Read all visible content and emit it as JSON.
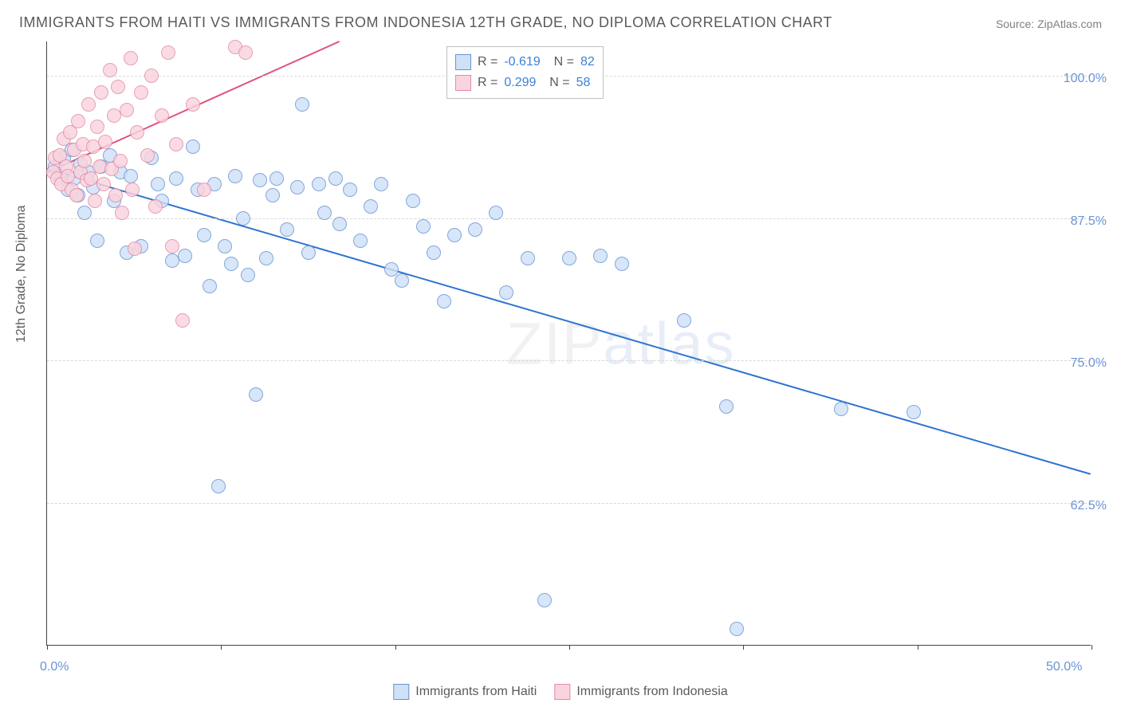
{
  "title": "IMMIGRANTS FROM HAITI VS IMMIGRANTS FROM INDONESIA 12TH GRADE, NO DIPLOMA CORRELATION CHART",
  "source": "Source: ZipAtlas.com",
  "y_axis_label": "12th Grade, No Diploma",
  "watermark": {
    "part1": "ZIP",
    "part2": "atlas"
  },
  "chart": {
    "type": "scatter",
    "xlim": [
      0,
      50
    ],
    "ylim": [
      50,
      103
    ],
    "x_ticks": [
      0,
      8.33,
      16.67,
      25,
      33.33,
      41.67,
      50
    ],
    "x_tick_labels": {
      "0": "0.0%",
      "50": "50.0%"
    },
    "y_grid": [
      62.5,
      75,
      87.5,
      100
    ],
    "y_tick_labels": [
      "62.5%",
      "75.0%",
      "87.5%",
      "100.0%"
    ],
    "background_color": "#ffffff",
    "grid_color": "#d8d8d8",
    "axis_color": "#444444",
    "series": [
      {
        "name": "Immigrants from Haiti",
        "color_fill": "#cfe1f7",
        "color_stroke": "#6a93d4",
        "marker_radius": 9,
        "R": "-0.619",
        "N": "82",
        "trend": {
          "x1": 0,
          "y1": 91.8,
          "x2": 50,
          "y2": 65.0,
          "color": "#2f74d0",
          "width": 2
        },
        "points": [
          [
            0.4,
            92.0
          ],
          [
            0.6,
            91.2
          ],
          [
            0.8,
            92.8
          ],
          [
            1.0,
            90.0
          ],
          [
            1.2,
            93.5
          ],
          [
            1.3,
            91.0
          ],
          [
            1.5,
            89.5
          ],
          [
            1.6,
            92.2
          ],
          [
            1.8,
            88.0
          ],
          [
            2.0,
            91.5
          ],
          [
            2.2,
            90.2
          ],
          [
            2.4,
            85.5
          ],
          [
            2.6,
            92.0
          ],
          [
            3.0,
            93.0
          ],
          [
            3.2,
            89.0
          ],
          [
            3.5,
            91.5
          ],
          [
            3.8,
            84.5
          ],
          [
            4.0,
            91.2
          ],
          [
            4.5,
            85.0
          ],
          [
            5.0,
            92.8
          ],
          [
            5.3,
            90.5
          ],
          [
            5.5,
            89.0
          ],
          [
            6.0,
            83.8
          ],
          [
            6.2,
            91.0
          ],
          [
            6.6,
            84.2
          ],
          [
            7.0,
            93.8
          ],
          [
            7.2,
            90.0
          ],
          [
            7.5,
            86.0
          ],
          [
            7.8,
            81.5
          ],
          [
            8.0,
            90.5
          ],
          [
            8.2,
            64.0
          ],
          [
            8.5,
            85.0
          ],
          [
            8.8,
            83.5
          ],
          [
            9.0,
            91.2
          ],
          [
            9.4,
            87.5
          ],
          [
            9.6,
            82.5
          ],
          [
            10.0,
            72.0
          ],
          [
            10.2,
            90.8
          ],
          [
            10.5,
            84.0
          ],
          [
            10.8,
            89.5
          ],
          [
            11.0,
            91.0
          ],
          [
            11.5,
            86.5
          ],
          [
            12.0,
            90.2
          ],
          [
            12.2,
            97.5
          ],
          [
            12.5,
            84.5
          ],
          [
            13.0,
            90.5
          ],
          [
            13.3,
            88.0
          ],
          [
            13.8,
            91.0
          ],
          [
            14.0,
            87.0
          ],
          [
            14.5,
            90.0
          ],
          [
            15.0,
            85.5
          ],
          [
            15.5,
            88.5
          ],
          [
            16.0,
            90.5
          ],
          [
            16.5,
            83.0
          ],
          [
            17.0,
            82.0
          ],
          [
            17.5,
            89.0
          ],
          [
            18.0,
            86.8
          ],
          [
            18.5,
            84.5
          ],
          [
            19.0,
            80.2
          ],
          [
            19.5,
            86.0
          ],
          [
            20.5,
            86.5
          ],
          [
            21.5,
            88.0
          ],
          [
            22.0,
            81.0
          ],
          [
            23.0,
            84.0
          ],
          [
            23.8,
            54.0
          ],
          [
            25.0,
            84.0
          ],
          [
            26.5,
            84.2
          ],
          [
            27.5,
            83.5
          ],
          [
            30.5,
            78.5
          ],
          [
            32.5,
            71.0
          ],
          [
            33.0,
            51.5
          ],
          [
            38.0,
            70.8
          ],
          [
            41.5,
            70.5
          ]
        ]
      },
      {
        "name": "Immigrants from Indonesia",
        "color_fill": "#f9d4de",
        "color_stroke": "#e48aa4",
        "marker_radius": 9,
        "R": "0.299",
        "N": "58",
        "trend": {
          "x1": 0,
          "y1": 91.5,
          "x2": 14,
          "y2": 103.0,
          "color": "#e0517a",
          "width": 2
        },
        "points": [
          [
            0.3,
            91.5
          ],
          [
            0.4,
            92.8
          ],
          [
            0.5,
            91.0
          ],
          [
            0.6,
            93.0
          ],
          [
            0.7,
            90.5
          ],
          [
            0.8,
            94.5
          ],
          [
            0.9,
            92.0
          ],
          [
            1.0,
            91.2
          ],
          [
            1.1,
            95.0
          ],
          [
            1.2,
            90.0
          ],
          [
            1.3,
            93.5
          ],
          [
            1.4,
            89.5
          ],
          [
            1.5,
            96.0
          ],
          [
            1.6,
            91.5
          ],
          [
            1.7,
            94.0
          ],
          [
            1.8,
            92.5
          ],
          [
            1.9,
            90.8
          ],
          [
            2.0,
            97.5
          ],
          [
            2.1,
            91.0
          ],
          [
            2.2,
            93.8
          ],
          [
            2.3,
            89.0
          ],
          [
            2.4,
            95.5
          ],
          [
            2.5,
            92.0
          ],
          [
            2.6,
            98.5
          ],
          [
            2.7,
            90.5
          ],
          [
            2.8,
            94.2
          ],
          [
            3.0,
            100.5
          ],
          [
            3.1,
            91.8
          ],
          [
            3.2,
            96.5
          ],
          [
            3.3,
            89.5
          ],
          [
            3.4,
            99.0
          ],
          [
            3.5,
            92.5
          ],
          [
            3.6,
            88.0
          ],
          [
            3.8,
            97.0
          ],
          [
            4.0,
            101.5
          ],
          [
            4.1,
            90.0
          ],
          [
            4.2,
            84.8
          ],
          [
            4.3,
            95.0
          ],
          [
            4.5,
            98.5
          ],
          [
            4.8,
            93.0
          ],
          [
            5.0,
            100.0
          ],
          [
            5.2,
            88.5
          ],
          [
            5.5,
            96.5
          ],
          [
            5.8,
            102.0
          ],
          [
            6.0,
            85.0
          ],
          [
            6.2,
            94.0
          ],
          [
            6.5,
            78.5
          ],
          [
            7.0,
            97.5
          ],
          [
            7.5,
            90.0
          ],
          [
            9.0,
            102.5
          ],
          [
            9.5,
            102.0
          ]
        ]
      }
    ]
  },
  "legend_bottom": [
    {
      "label": "Immigrants from Haiti",
      "fill": "#cfe1f7",
      "stroke": "#6a93d4"
    },
    {
      "label": "Immigrants from Indonesia",
      "fill": "#f9d4de",
      "stroke": "#e48aa4"
    }
  ]
}
